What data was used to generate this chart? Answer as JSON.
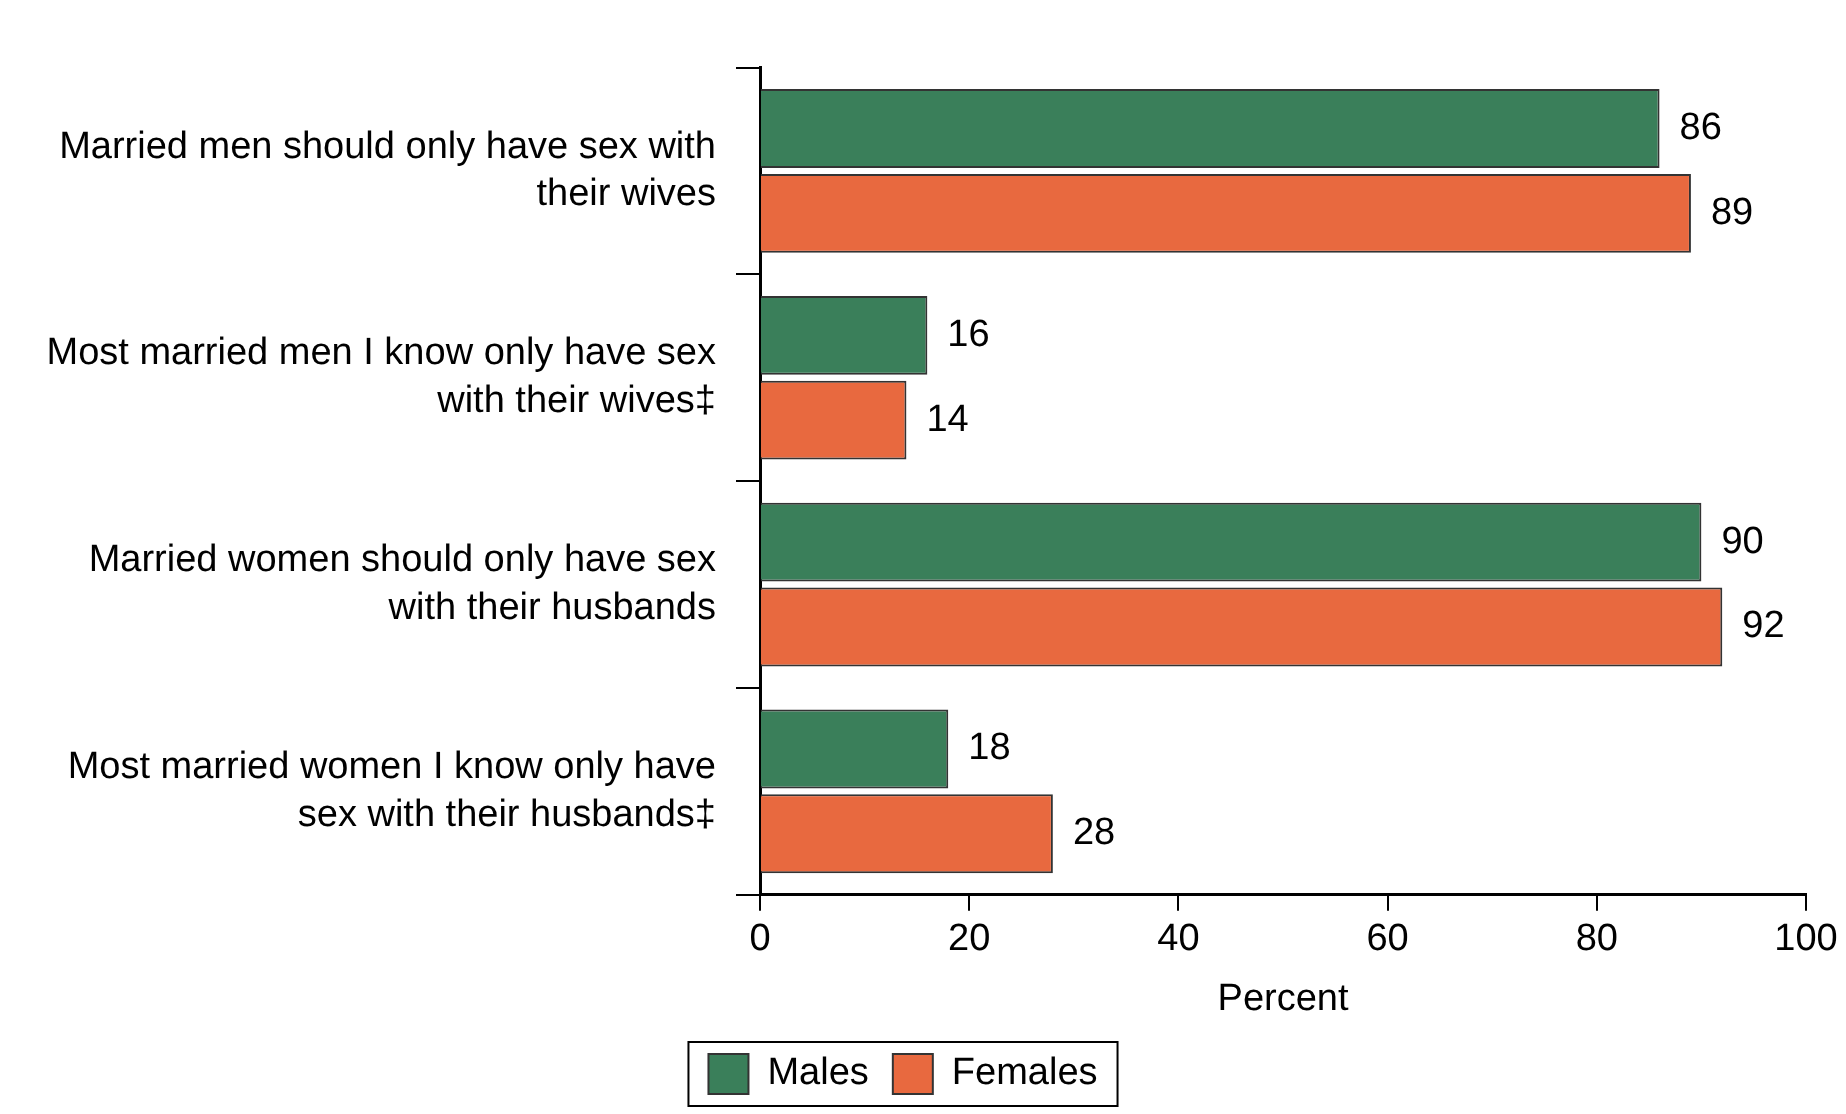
{
  "chart_data": {
    "type": "bar",
    "orientation": "horizontal",
    "xlabel": "Percent",
    "categories": [
      "Married men should only have sex with their wives",
      "Most married men I know only have sex with their wives‡",
      "Married women should only have sex with their husbands",
      "Most married women I know only have sex with their husbands‡"
    ],
    "series": [
      {
        "name": "Males",
        "color": "#3a7f5a",
        "values": [
          86,
          16,
          90,
          18
        ]
      },
      {
        "name": "Females",
        "color": "#e8693f",
        "values": [
          89,
          14,
          92,
          28
        ]
      }
    ],
    "xlim": [
      0,
      100
    ],
    "xticks": [
      0,
      20,
      40,
      60,
      80,
      100
    ],
    "grid": false,
    "legend": "bottom",
    "data_labels": true
  }
}
